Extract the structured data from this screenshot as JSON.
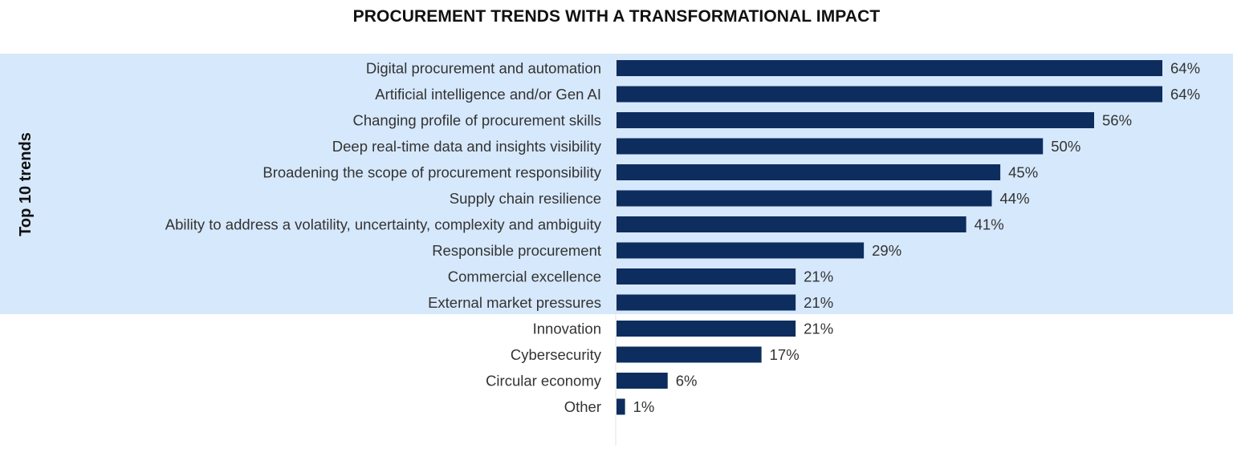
{
  "chart_data": {
    "type": "bar",
    "orientation": "horizontal",
    "title": "PROCUREMENT TRENDS WITH A TRANSFORMATIONAL IMPACT",
    "xlabel": "",
    "ylabel": "",
    "xlim": [
      0,
      64
    ],
    "grid": false,
    "value_suffix": "%",
    "highlight_group": {
      "label": "Top 10 trends",
      "count": 10
    },
    "categories": [
      "Digital procurement and automation",
      "Artificial intelligence and/or Gen AI",
      "Changing profile of procurement skills",
      "Deep real-time data and insights visibility",
      "Broadening the scope of procurement responsibility",
      "Supply chain resilience",
      "Ability to address a volatility, uncertainty, complexity and ambiguity",
      "Responsible procurement",
      "Commercial excellence",
      "External market pressures",
      "Innovation",
      "Cybersecurity",
      "Circular economy",
      "Other"
    ],
    "values": [
      64,
      64,
      56,
      50,
      45,
      44,
      41,
      29,
      21,
      21,
      21,
      17,
      6,
      1
    ],
    "value_labels": [
      "64%",
      "64%",
      "56%",
      "50%",
      "45%",
      "44%",
      "41%",
      "29%",
      "21%",
      "21%",
      "21%",
      "17%",
      "6%",
      "1%"
    ]
  },
  "colors": {
    "bar": "#0d2d5e",
    "highlight_band": "#d6e8fb",
    "axis_line": "#e3e3e3",
    "text": "#333333"
  }
}
